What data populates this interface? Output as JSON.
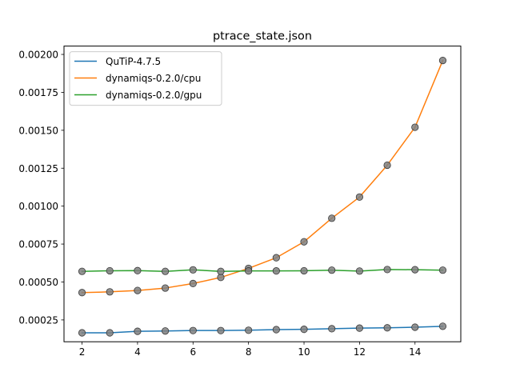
{
  "chart_data": {
    "type": "line",
    "title": "ptrace_state.json",
    "xlabel": "",
    "ylabel": "",
    "xlim": [
      1.35,
      15.65
    ],
    "ylim": [
      0.000106,
      0.002055
    ],
    "xticks": [
      2,
      4,
      6,
      8,
      10,
      12,
      14
    ],
    "xtick_labels": [
      "2",
      "4",
      "6",
      "8",
      "10",
      "12",
      "14"
    ],
    "yticks": [
      0.00025,
      0.0005,
      0.00075,
      0.001,
      0.00125,
      0.0015,
      0.00175,
      0.002
    ],
    "ytick_labels": [
      "0.00025",
      "0.00050",
      "0.00075",
      "0.00100",
      "0.00125",
      "0.00150",
      "0.00175",
      "0.00200"
    ],
    "grid": false,
    "legend_position": "top-left",
    "x": [
      2,
      3,
      4,
      5,
      6,
      7,
      8,
      9,
      10,
      11,
      12,
      13,
      14,
      15
    ],
    "series": [
      {
        "name": "QuTiP-4.7.5",
        "color": "#1f77b4",
        "values": [
          0.000165,
          0.000165,
          0.000175,
          0.000177,
          0.00018,
          0.00018,
          0.000182,
          0.000186,
          0.000188,
          0.000192,
          0.000196,
          0.000198,
          0.000202,
          0.000208
        ]
      },
      {
        "name": "dynamiqs-0.2.0/cpu",
        "color": "#ff7f0e",
        "values": [
          0.00043,
          0.000435,
          0.000444,
          0.00046,
          0.00049,
          0.00053,
          0.00059,
          0.00066,
          0.000765,
          0.00092,
          0.00106,
          0.00127,
          0.00152,
          0.00196
        ]
      },
      {
        "name": "dynamiqs-0.2.0/gpu",
        "color": "#2ca02c",
        "values": [
          0.00057,
          0.000574,
          0.000575,
          0.00057,
          0.00058,
          0.00057,
          0.000573,
          0.000573,
          0.000574,
          0.000578,
          0.000572,
          0.000582,
          0.000581,
          0.000578
        ]
      }
    ],
    "marker_color": "#7f7f7f"
  }
}
